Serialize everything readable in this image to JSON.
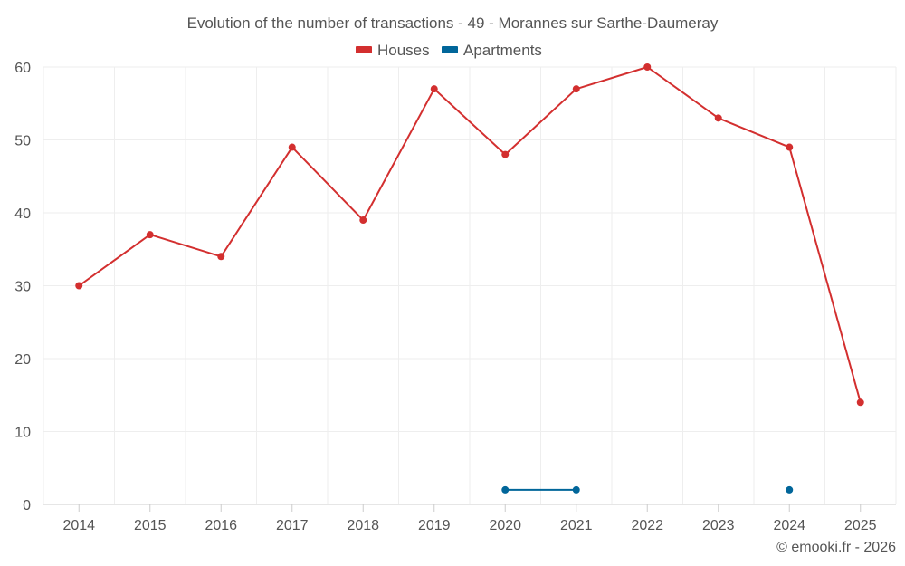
{
  "chart_data": {
    "type": "line",
    "title": "Evolution of the number of transactions - 49 - Morannes sur Sarthe-Daumeray",
    "categories": [
      "2014",
      "2015",
      "2016",
      "2017",
      "2018",
      "2019",
      "2020",
      "2021",
      "2022",
      "2023",
      "2024",
      "2025"
    ],
    "series": [
      {
        "name": "Houses",
        "color": "#d32f2f",
        "values": [
          30,
          37,
          34,
          49,
          39,
          57,
          48,
          57,
          60,
          53,
          49,
          14
        ]
      },
      {
        "name": "Apartments",
        "color": "#01669a",
        "values": [
          null,
          null,
          null,
          null,
          null,
          null,
          2,
          2,
          null,
          null,
          2,
          null
        ]
      }
    ],
    "ylim": [
      0,
      60
    ],
    "yticks": [
      0,
      10,
      20,
      30,
      40,
      50,
      60
    ],
    "grid": true,
    "legend": "top-center",
    "xlabel": "",
    "ylabel": ""
  },
  "credit": "© emooki.fr - 2026"
}
